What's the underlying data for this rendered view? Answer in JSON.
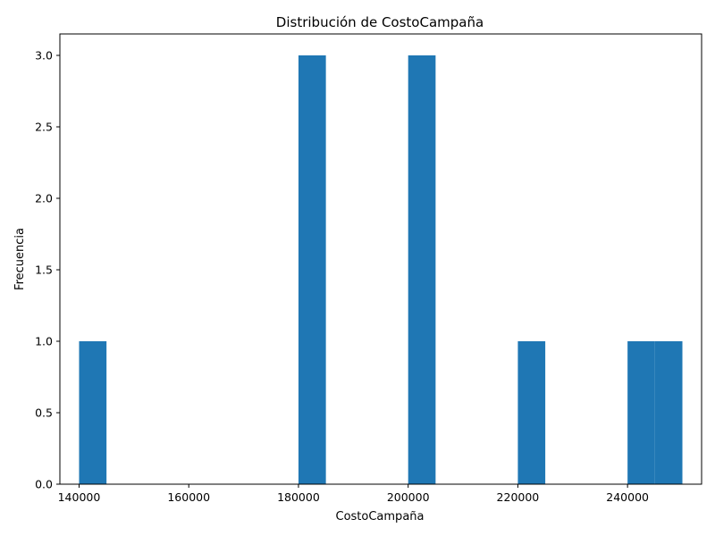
{
  "chart_data": {
    "type": "bar",
    "title": "Distribución de CostoCampaña",
    "xlabel": "CostoCampaña",
    "ylabel": "Frecuencia",
    "xlim": [
      136500,
      253500
    ],
    "ylim": [
      0,
      3.15
    ],
    "xticks": [
      140000,
      160000,
      180000,
      200000,
      220000,
      240000
    ],
    "yticks": [
      0.0,
      0.5,
      1.0,
      1.5,
      2.0,
      2.5,
      3.0
    ],
    "xtick_labels": [
      "140000",
      "160000",
      "180000",
      "200000",
      "220000",
      "240000"
    ],
    "ytick_labels": [
      "0.0",
      "0.5",
      "1.0",
      "1.5",
      "2.0",
      "2.5",
      "3.0"
    ],
    "bin_edges": [
      140000,
      145000,
      150000,
      155000,
      160000,
      165000,
      170000,
      175000,
      180000,
      185000,
      190000,
      195000,
      200000,
      205000,
      210000,
      215000,
      220000,
      225000,
      230000,
      235000,
      240000,
      245000,
      250000
    ],
    "counts": [
      1,
      0,
      0,
      0,
      0,
      0,
      0,
      0,
      3,
      0,
      0,
      0,
      3,
      0,
      0,
      0,
      1,
      0,
      0,
      0,
      1,
      1
    ],
    "bar_color": "#1f77b4",
    "grid": false,
    "legend": false
  }
}
